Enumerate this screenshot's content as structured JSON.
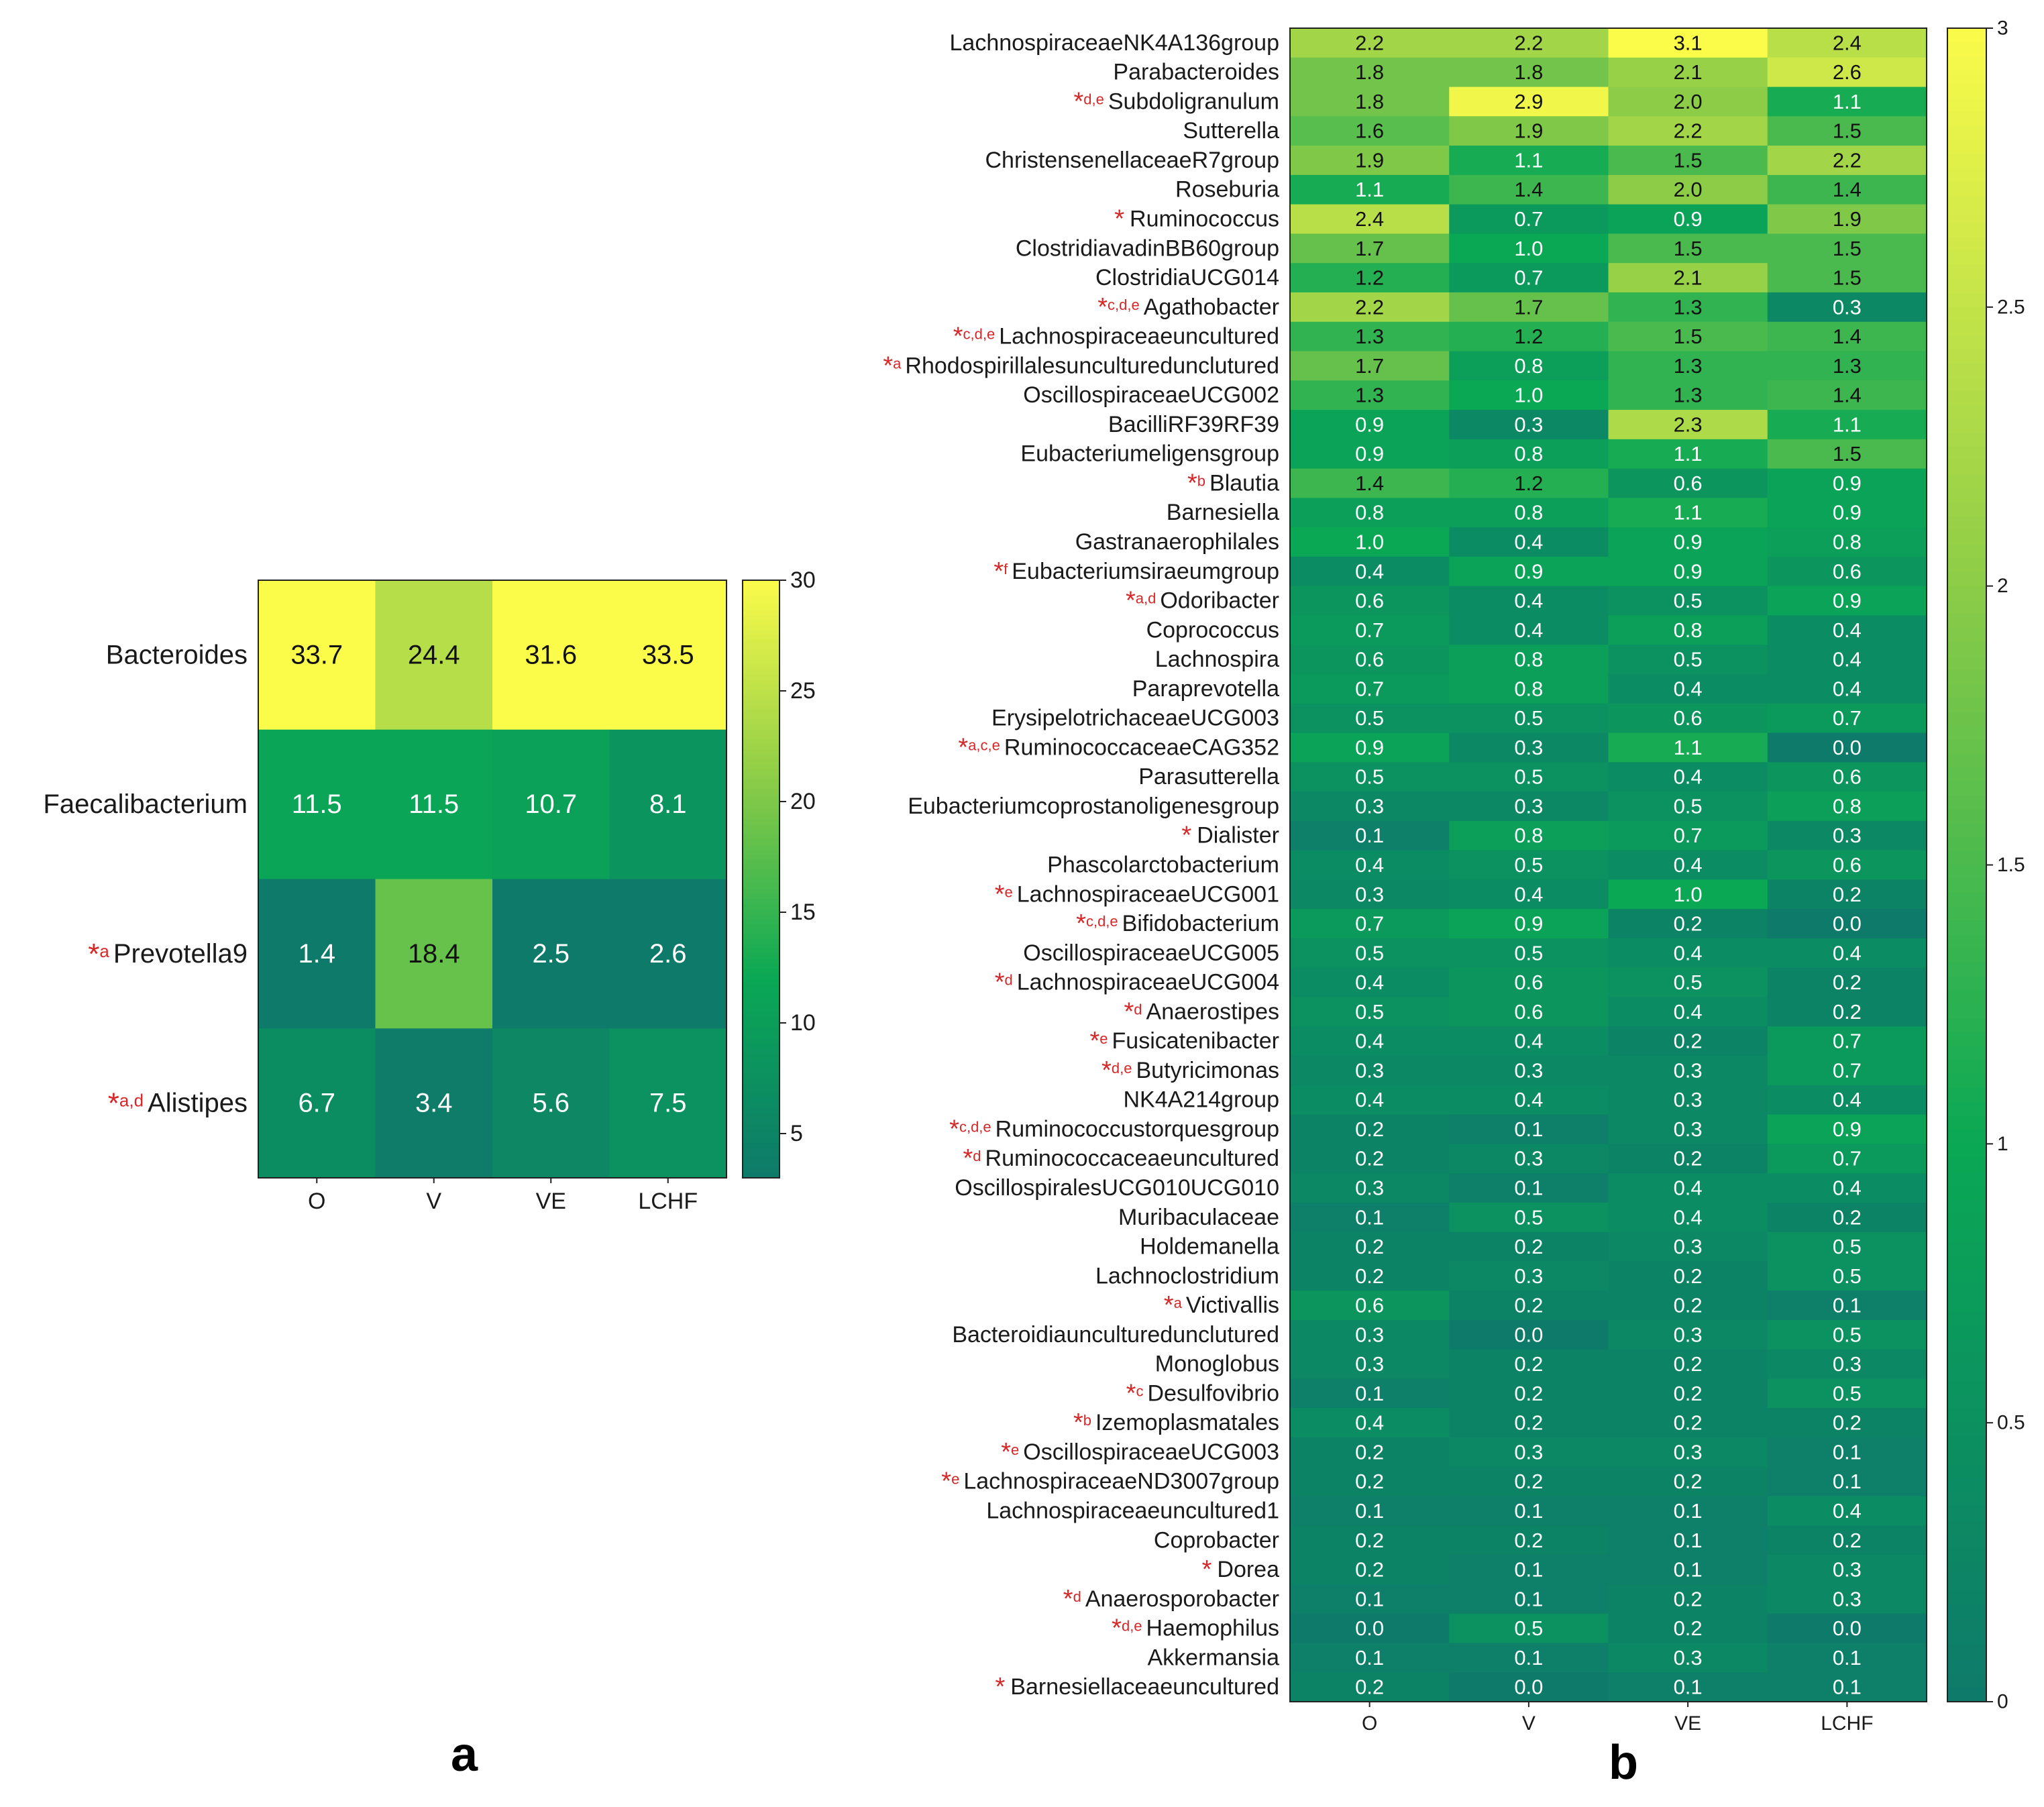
{
  "chart_data": [
    {
      "type": "heatmap",
      "panel_label": "a",
      "columns": [
        "O",
        "V",
        "VE",
        "LCHF"
      ],
      "rows": [
        {
          "name": "Bacteroides",
          "star": false,
          "sup": "",
          "values": [
            33.7,
            24.4,
            31.6,
            33.5
          ]
        },
        {
          "name": "Faecalibacterium",
          "star": false,
          "sup": "",
          "values": [
            11.5,
            11.5,
            10.7,
            8.1
          ]
        },
        {
          "name": "Prevotella9",
          "star": true,
          "sup": "a",
          "values": [
            1.4,
            18.4,
            2.5,
            2.6
          ]
        },
        {
          "name": "Alistipes",
          "star": true,
          "sup": "a,d",
          "values": [
            6.7,
            3.4,
            5.6,
            7.5
          ]
        }
      ],
      "colorbar": {
        "min": 3,
        "max": 30,
        "ticks": [
          "5",
          "10",
          "15",
          "20",
          "25",
          "30"
        ],
        "tick_values": [
          5,
          10,
          15,
          20,
          25,
          30
        ]
      }
    },
    {
      "type": "heatmap",
      "panel_label": "b",
      "columns": [
        "O",
        "V",
        "VE",
        "LCHF"
      ],
      "rows": [
        {
          "name": "LachnospiraceaeNK4A136group",
          "star": false,
          "sup": "",
          "values": [
            2.2,
            2.2,
            3.1,
            2.4
          ]
        },
        {
          "name": "Parabacteroides",
          "star": false,
          "sup": "",
          "values": [
            1.8,
            1.8,
            2.1,
            2.6
          ]
        },
        {
          "name": "Subdoligranulum",
          "star": true,
          "sup": "d,e",
          "values": [
            1.8,
            2.9,
            2.0,
            1.1
          ]
        },
        {
          "name": "Sutterella",
          "star": false,
          "sup": "",
          "values": [
            1.6,
            1.9,
            2.2,
            1.5
          ]
        },
        {
          "name": "ChristensenellaceaeR7group",
          "star": false,
          "sup": "",
          "values": [
            1.9,
            1.1,
            1.5,
            2.2
          ]
        },
        {
          "name": "Roseburia",
          "star": false,
          "sup": "",
          "values": [
            1.1,
            1.4,
            2.0,
            1.4
          ]
        },
        {
          "name": "Ruminococcus",
          "star": true,
          "sup": "",
          "values": [
            2.4,
            0.7,
            0.9,
            1.9
          ]
        },
        {
          "name": "ClostridiavadinBB60group",
          "star": false,
          "sup": "",
          "values": [
            1.7,
            1.0,
            1.5,
            1.5
          ]
        },
        {
          "name": "ClostridiaUCG014",
          "star": false,
          "sup": "",
          "values": [
            1.2,
            0.7,
            2.1,
            1.5
          ]
        },
        {
          "name": "Agathobacter",
          "star": true,
          "sup": "c,d,e",
          "values": [
            2.2,
            1.7,
            1.3,
            0.3
          ]
        },
        {
          "name": "Lachnospiraceaeuncultured",
          "star": true,
          "sup": "c,d,e",
          "values": [
            1.3,
            1.2,
            1.5,
            1.4
          ]
        },
        {
          "name": "Rhodospirillalesunculturedunclutured",
          "star": true,
          "sup": "a",
          "values": [
            1.7,
            0.8,
            1.3,
            1.3
          ]
        },
        {
          "name": "OscillospiraceaeUCG002",
          "star": false,
          "sup": "",
          "values": [
            1.3,
            1.0,
            1.3,
            1.4
          ]
        },
        {
          "name": "BacilliRF39RF39",
          "star": false,
          "sup": "",
          "values": [
            0.9,
            0.3,
            2.3,
            1.1
          ]
        },
        {
          "name": "Eubacteriumeligensgroup",
          "star": false,
          "sup": "",
          "values": [
            0.9,
            0.8,
            1.1,
            1.5
          ]
        },
        {
          "name": "Blautia",
          "star": true,
          "sup": "b",
          "values": [
            1.4,
            1.2,
            0.6,
            0.9
          ]
        },
        {
          "name": "Barnesiella",
          "star": false,
          "sup": "",
          "values": [
            0.8,
            0.8,
            1.1,
            0.9
          ]
        },
        {
          "name": "Gastranaerophilales",
          "star": false,
          "sup": "",
          "values": [
            1.0,
            0.4,
            0.9,
            0.8
          ]
        },
        {
          "name": "Eubacteriumsiraeumgroup",
          "star": true,
          "sup": "f",
          "values": [
            0.4,
            0.9,
            0.9,
            0.6
          ]
        },
        {
          "name": "Odoribacter",
          "star": true,
          "sup": "a,d",
          "values": [
            0.6,
            0.4,
            0.5,
            0.9
          ]
        },
        {
          "name": "Coprococcus",
          "star": false,
          "sup": "",
          "values": [
            0.7,
            0.4,
            0.8,
            0.4
          ]
        },
        {
          "name": "Lachnospira",
          "star": false,
          "sup": "",
          "values": [
            0.6,
            0.8,
            0.5,
            0.4
          ]
        },
        {
          "name": "Paraprevotella",
          "star": false,
          "sup": "",
          "values": [
            0.7,
            0.8,
            0.4,
            0.4
          ]
        },
        {
          "name": "ErysipelotrichaceaeUCG003",
          "star": false,
          "sup": "",
          "values": [
            0.5,
            0.5,
            0.6,
            0.7
          ]
        },
        {
          "name": "RuminococcaceaeCAG352",
          "star": true,
          "sup": "a,c,e",
          "values": [
            0.9,
            0.3,
            1.1,
            0.0
          ]
        },
        {
          "name": "Parasutterella",
          "star": false,
          "sup": "",
          "values": [
            0.5,
            0.5,
            0.4,
            0.6
          ]
        },
        {
          "name": "Eubacteriumcoprostanoligenesgroup",
          "star": false,
          "sup": "",
          "values": [
            0.3,
            0.3,
            0.5,
            0.8
          ]
        },
        {
          "name": "Dialister",
          "star": true,
          "sup": "",
          "values": [
            0.1,
            0.8,
            0.7,
            0.3
          ]
        },
        {
          "name": "Phascolarctobacterium",
          "star": false,
          "sup": "",
          "values": [
            0.4,
            0.5,
            0.4,
            0.6
          ]
        },
        {
          "name": "LachnospiraceaeUCG001",
          "star": true,
          "sup": "e",
          "values": [
            0.3,
            0.4,
            1.0,
            0.2
          ]
        },
        {
          "name": "Bifidobacterium",
          "star": true,
          "sup": "c,d,e",
          "values": [
            0.7,
            0.9,
            0.2,
            0.0
          ]
        },
        {
          "name": "OscillospiraceaeUCG005",
          "star": false,
          "sup": "",
          "values": [
            0.5,
            0.5,
            0.4,
            0.4
          ]
        },
        {
          "name": "LachnospiraceaeUCG004",
          "star": true,
          "sup": "d",
          "values": [
            0.4,
            0.6,
            0.5,
            0.2
          ]
        },
        {
          "name": "Anaerostipes",
          "star": true,
          "sup": "d",
          "values": [
            0.5,
            0.6,
            0.4,
            0.2
          ]
        },
        {
          "name": "Fusicatenibacter",
          "star": true,
          "sup": "e",
          "values": [
            0.4,
            0.4,
            0.2,
            0.7
          ]
        },
        {
          "name": "Butyricimonas",
          "star": true,
          "sup": "d,e",
          "values": [
            0.3,
            0.3,
            0.3,
            0.7
          ]
        },
        {
          "name": "NK4A214group",
          "star": false,
          "sup": "",
          "values": [
            0.4,
            0.4,
            0.3,
            0.4
          ]
        },
        {
          "name": "Ruminococcustorquesgroup",
          "star": true,
          "sup": "c,d,e",
          "values": [
            0.2,
            0.1,
            0.3,
            0.9
          ]
        },
        {
          "name": "Ruminococcaceaeuncultured",
          "star": true,
          "sup": "d",
          "values": [
            0.2,
            0.3,
            0.2,
            0.7
          ]
        },
        {
          "name": "OscillospiralesUCG010UCG010",
          "star": false,
          "sup": "",
          "values": [
            0.3,
            0.1,
            0.4,
            0.4
          ]
        },
        {
          "name": "Muribaculaceae",
          "star": false,
          "sup": "",
          "values": [
            0.1,
            0.5,
            0.4,
            0.2
          ]
        },
        {
          "name": "Holdemanella",
          "star": false,
          "sup": "",
          "values": [
            0.2,
            0.2,
            0.3,
            0.5
          ]
        },
        {
          "name": "Lachnoclostridium",
          "star": false,
          "sup": "",
          "values": [
            0.2,
            0.3,
            0.2,
            0.5
          ]
        },
        {
          "name": "Victivallis",
          "star": true,
          "sup": "a",
          "values": [
            0.6,
            0.2,
            0.2,
            0.1
          ]
        },
        {
          "name": "Bacteroidiaunculturedunclutured",
          "star": false,
          "sup": "",
          "values": [
            0.3,
            0.0,
            0.3,
            0.5
          ]
        },
        {
          "name": "Monoglobus",
          "star": false,
          "sup": "",
          "values": [
            0.3,
            0.2,
            0.2,
            0.3
          ]
        },
        {
          "name": "Desulfovibrio",
          "star": true,
          "sup": "c",
          "values": [
            0.1,
            0.2,
            0.2,
            0.5
          ]
        },
        {
          "name": "Izemoplasmatales",
          "star": true,
          "sup": "b",
          "values": [
            0.4,
            0.2,
            0.2,
            0.2
          ]
        },
        {
          "name": "OscillospiraceaeUCG003",
          "star": true,
          "sup": "e",
          "values": [
            0.2,
            0.3,
            0.3,
            0.1
          ]
        },
        {
          "name": "LachnospiraceaeND3007group",
          "star": true,
          "sup": "e",
          "values": [
            0.2,
            0.2,
            0.2,
            0.1
          ]
        },
        {
          "name": "Lachnospiraceaeuncultured1",
          "star": false,
          "sup": "",
          "values": [
            0.1,
            0.1,
            0.1,
            0.4
          ]
        },
        {
          "name": "Coprobacter",
          "star": false,
          "sup": "",
          "values": [
            0.2,
            0.2,
            0.1,
            0.2
          ]
        },
        {
          "name": "Dorea",
          "star": true,
          "sup": "",
          "values": [
            0.2,
            0.1,
            0.1,
            0.3
          ]
        },
        {
          "name": "Anaerosporobacter",
          "star": true,
          "sup": "d",
          "values": [
            0.1,
            0.1,
            0.2,
            0.3
          ]
        },
        {
          "name": "Haemophilus",
          "star": true,
          "sup": "d,e",
          "values": [
            0.0,
            0.5,
            0.2,
            0.0
          ]
        },
        {
          "name": "Akkermansia",
          "star": false,
          "sup": "",
          "values": [
            0.1,
            0.1,
            0.3,
            0.1
          ]
        },
        {
          "name": "Barnesiellaceaeuncultured",
          "star": true,
          "sup": "",
          "values": [
            0.2,
            0.0,
            0.1,
            0.1
          ]
        }
      ],
      "colorbar": {
        "min": 0,
        "max": 3,
        "ticks": [
          "0",
          "0.5",
          "1",
          "1.5",
          "2",
          "2.5",
          "3"
        ],
        "tick_values": [
          0,
          0.5,
          1,
          1.5,
          2,
          2.5,
          3
        ]
      }
    }
  ],
  "colormap": [
    "#0e7a6a",
    "#0aa855",
    "#8ccc47",
    "#fbfb4a"
  ],
  "star_symbol": "*"
}
